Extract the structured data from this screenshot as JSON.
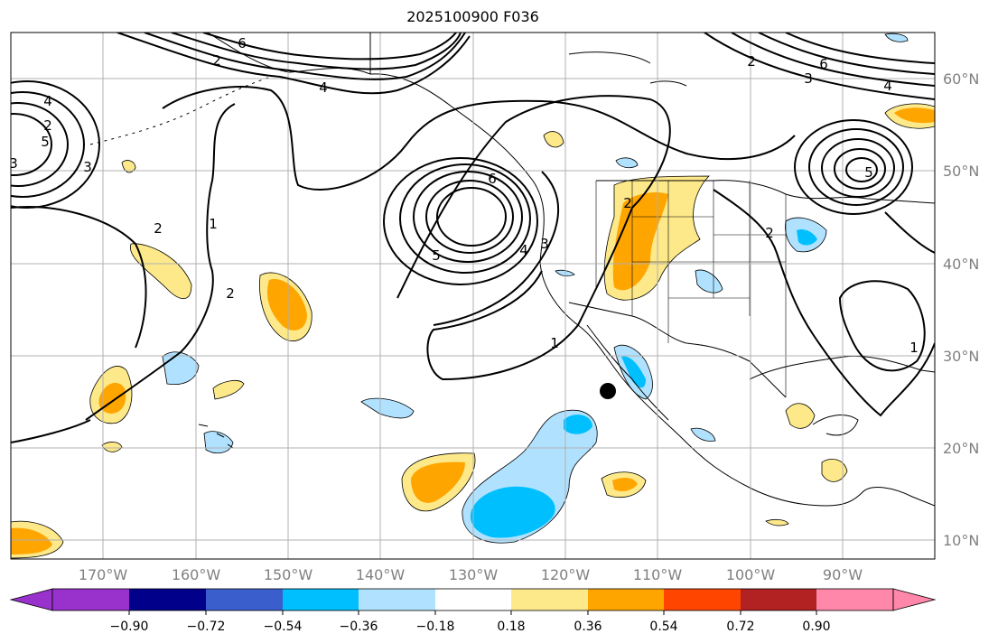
{
  "title": "2025100900 F036",
  "map": {
    "lon_range": [
      -180,
      -80
    ],
    "lat_range": [
      8,
      65
    ],
    "gridlines": true,
    "lat_labels": [
      "10°N",
      "20°N",
      "30°N",
      "40°N",
      "50°N",
      "60°N"
    ],
    "lon_labels": [
      "170°W",
      "160°W",
      "150°W",
      "140°W",
      "130°W",
      "120°W",
      "110°W",
      "100°W",
      "90°W"
    ],
    "marker": {
      "name": "black dot",
      "lon": -115.2,
      "lat": 26.3
    }
  },
  "colorbar": {
    "colors": [
      "#9932cc",
      "#00008b",
      "#3a5fcd",
      "#00bfff",
      "#b0e2ff",
      "#ffffff",
      "#fde98a",
      "#ffa500",
      "#ff4500",
      "#b22222",
      "#ff88aa"
    ],
    "tick_labels": [
      "−0.90",
      "−0.72",
      "−0.54",
      "−0.36",
      "−0.18",
      "0.18",
      "0.36",
      "0.54",
      "0.72",
      "0.90"
    ]
  },
  "contour_labels": [
    "6",
    "2",
    "4",
    "2",
    "4",
    "5",
    "3",
    "3",
    "2",
    "1",
    "2",
    "6",
    "5",
    "4",
    "3",
    "2",
    "1",
    "2",
    "3",
    "4",
    "6",
    "5",
    "2",
    "1"
  ]
}
